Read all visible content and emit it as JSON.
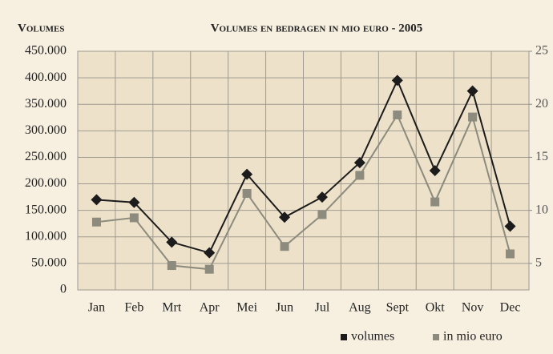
{
  "chart_data": {
    "type": "line",
    "title": "Volumes en bedragen in mio euro - 2005",
    "y_label": "Volumes",
    "categories": [
      "Jan",
      "Feb",
      "Mrt",
      "Apr",
      "Mei",
      "Jun",
      "Jul",
      "Aug",
      "Sept",
      "Okt",
      "Nov",
      "Dec"
    ],
    "series": [
      {
        "name": "volumes",
        "color": "#1c1c1c",
        "marker": "diamond",
        "values": [
          170000,
          165000,
          90000,
          70000,
          218000,
          137000,
          175000,
          240000,
          395000,
          225000,
          375000,
          120000
        ]
      },
      {
        "name": "in mio euro",
        "color": "#8c8b7e",
        "marker": "square",
        "axis": "y2",
        "values": [
          8.9,
          9.3,
          4.8,
          4.45,
          11.6,
          6.6,
          9.6,
          13.3,
          19.0,
          10.8,
          18.8,
          5.9
        ]
      }
    ],
    "ylim": [
      0,
      450000
    ],
    "yticks": [
      0,
      {
        "value": 50000,
        "label": "50.000"
      },
      {
        "value": 100000,
        "label": "100.000"
      },
      {
        "value": 150000,
        "label": "150.000"
      },
      {
        "value": 200000,
        "label": "200.000"
      },
      {
        "value": 250000,
        "label": "250.000"
      },
      {
        "value": 300000,
        "label": "300.000"
      },
      {
        "value": 350000,
        "label": "350.000"
      },
      {
        "value": 400000,
        "label": "400.000"
      },
      {
        "value": 450000,
        "label": "450.000"
      }
    ],
    "y2lim": [
      2.5,
      25
    ],
    "y2ticks": [
      5,
      10,
      15,
      20,
      25
    ],
    "grid": true,
    "legend": "bottom-right"
  }
}
